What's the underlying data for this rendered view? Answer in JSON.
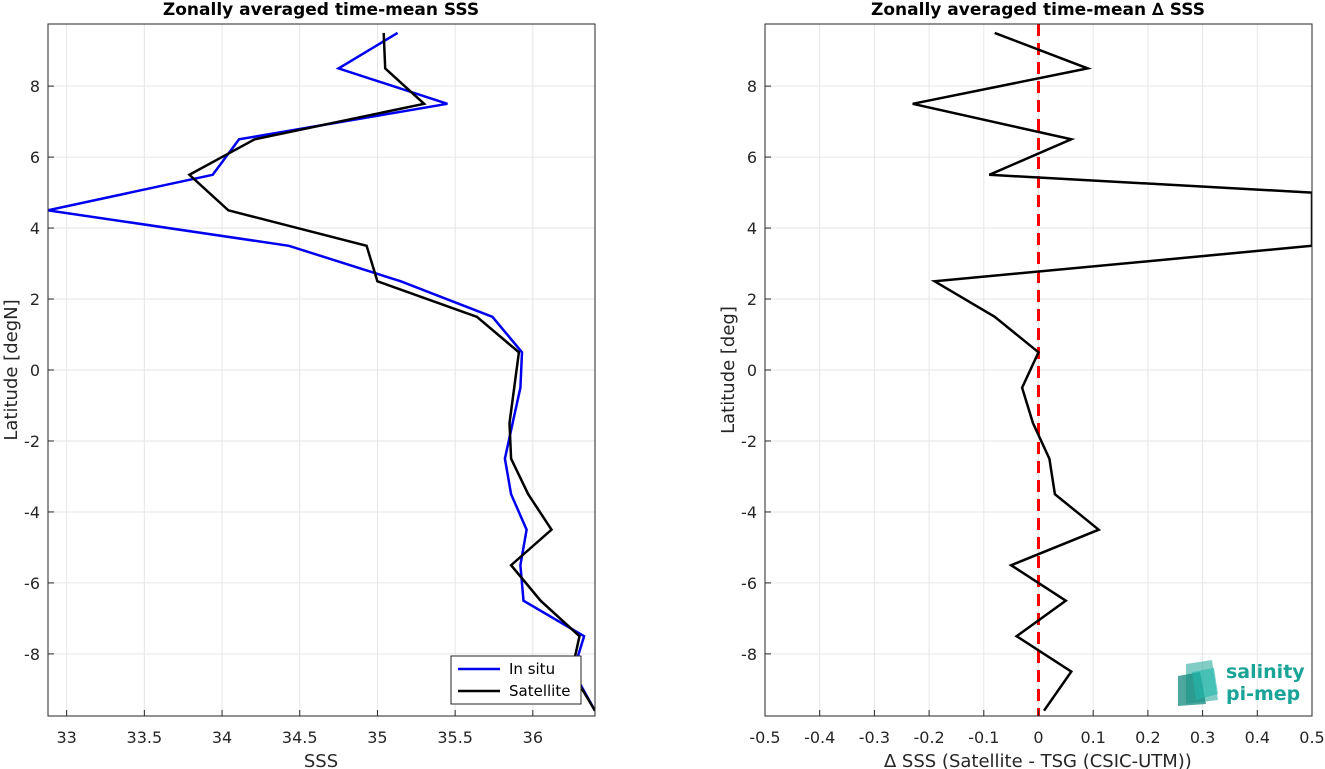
{
  "chart_data": [
    {
      "type": "line",
      "title": "Zonally averaged time-mean SSS",
      "xlabel": "SSS",
      "ylabel": "Latitude [degN]",
      "xlim": [
        32.88,
        36.4
      ],
      "ylim": [
        -9.75,
        9.75
      ],
      "xticks": [
        33,
        33.5,
        34,
        34.5,
        35,
        35.5,
        36
      ],
      "xtick_labels": [
        "33",
        "33.5",
        "34",
        "34.5",
        "35",
        "35.5",
        "36"
      ],
      "yticks": [
        -8,
        -6,
        -4,
        -2,
        0,
        2,
        4,
        6,
        8
      ],
      "ytick_labels": [
        "-8",
        "-6",
        "-4",
        "-2",
        "0",
        "2",
        "4",
        "6",
        "8"
      ],
      "grid": true,
      "legend": "bottom-right",
      "series": [
        {
          "name": "In situ",
          "color": "#0000ee",
          "points": [
            [
              35.13,
              9.5
            ],
            [
              34.75,
              8.5
            ],
            [
              35.45,
              7.5
            ],
            [
              34.11,
              6.5
            ],
            [
              33.94,
              5.5
            ],
            [
              32.88,
              4.5
            ],
            [
              34.43,
              3.5
            ],
            [
              35.15,
              2.5
            ],
            [
              35.74,
              1.5
            ],
            [
              35.93,
              0.5
            ],
            [
              35.92,
              -0.5
            ],
            [
              35.87,
              -1.5
            ],
            [
              35.82,
              -2.5
            ],
            [
              35.86,
              -3.5
            ],
            [
              35.96,
              -4.5
            ],
            [
              35.92,
              -5.5
            ],
            [
              35.94,
              -6.5
            ],
            [
              36.33,
              -7.5
            ],
            [
              36.26,
              -8.5
            ],
            [
              36.4,
              -9.6
            ]
          ]
        },
        {
          "name": "Satellite",
          "color": "#000000",
          "points": [
            [
              35.04,
              9.5
            ],
            [
              35.05,
              8.5
            ],
            [
              35.3,
              7.5
            ],
            [
              34.21,
              6.5
            ],
            [
              33.79,
              5.5
            ],
            [
              34.04,
              4.5
            ],
            [
              34.93,
              3.5
            ],
            [
              35.0,
              2.5
            ],
            [
              35.64,
              1.5
            ],
            [
              35.91,
              0.5
            ],
            [
              35.88,
              -0.5
            ],
            [
              35.85,
              -1.5
            ],
            [
              35.86,
              -2.5
            ],
            [
              35.97,
              -3.5
            ],
            [
              36.12,
              -4.5
            ],
            [
              35.86,
              -5.5
            ],
            [
              36.05,
              -6.5
            ],
            [
              36.3,
              -7.5
            ],
            [
              36.25,
              -8.5
            ],
            [
              36.4,
              -9.6
            ]
          ]
        }
      ]
    },
    {
      "type": "line",
      "title": "Zonally averaged time-mean ∆ SSS",
      "xlabel": "∆ SSS (Satellite - TSG (CSIC-UTM))",
      "ylabel": "Latitude [deg]",
      "xlim": [
        -0.5,
        0.5
      ],
      "ylim": [
        -9.75,
        9.75
      ],
      "xticks": [
        -0.5,
        -0.4,
        -0.3,
        -0.2,
        -0.1,
        0,
        0.1,
        0.2,
        0.3,
        0.4,
        0.5
      ],
      "xtick_labels": [
        "-0.5",
        "-0.4",
        "-0.3",
        "-0.2",
        "-0.1",
        "0",
        "0.1",
        "0.2",
        "0.3",
        "0.4",
        "0.5"
      ],
      "yticks": [
        -8,
        -6,
        -4,
        -2,
        0,
        2,
        4,
        6,
        8
      ],
      "ytick_labels": [
        "-8",
        "-6",
        "-4",
        "-2",
        "0",
        "2",
        "4",
        "6",
        "8"
      ],
      "grid": true,
      "reference_line": {
        "x": 0,
        "color": "#ff0000",
        "style": "dashed"
      },
      "series": [
        {
          "color": "#000000",
          "points": [
            [
              -0.08,
              9.5
            ],
            [
              0.09,
              8.5
            ],
            [
              -0.23,
              7.5
            ],
            [
              0.06,
              6.5
            ],
            [
              -0.09,
              5.5
            ],
            [
              0.5,
              5.0
            ],
            [
              0.5,
              3.5
            ],
            [
              -0.19,
              2.5
            ],
            [
              -0.08,
              1.5
            ],
            [
              0.0,
              0.5
            ],
            [
              -0.03,
              -0.5
            ],
            [
              -0.01,
              -1.5
            ],
            [
              0.02,
              -2.5
            ],
            [
              0.03,
              -3.5
            ],
            [
              0.11,
              -4.5
            ],
            [
              -0.05,
              -5.5
            ],
            [
              0.05,
              -6.5
            ],
            [
              -0.04,
              -7.5
            ],
            [
              0.06,
              -8.5
            ],
            [
              0.01,
              -9.6
            ]
          ]
        }
      ]
    }
  ],
  "logo": {
    "line1": "salinity",
    "line2": "pi-mep",
    "color": "#1aa497"
  }
}
